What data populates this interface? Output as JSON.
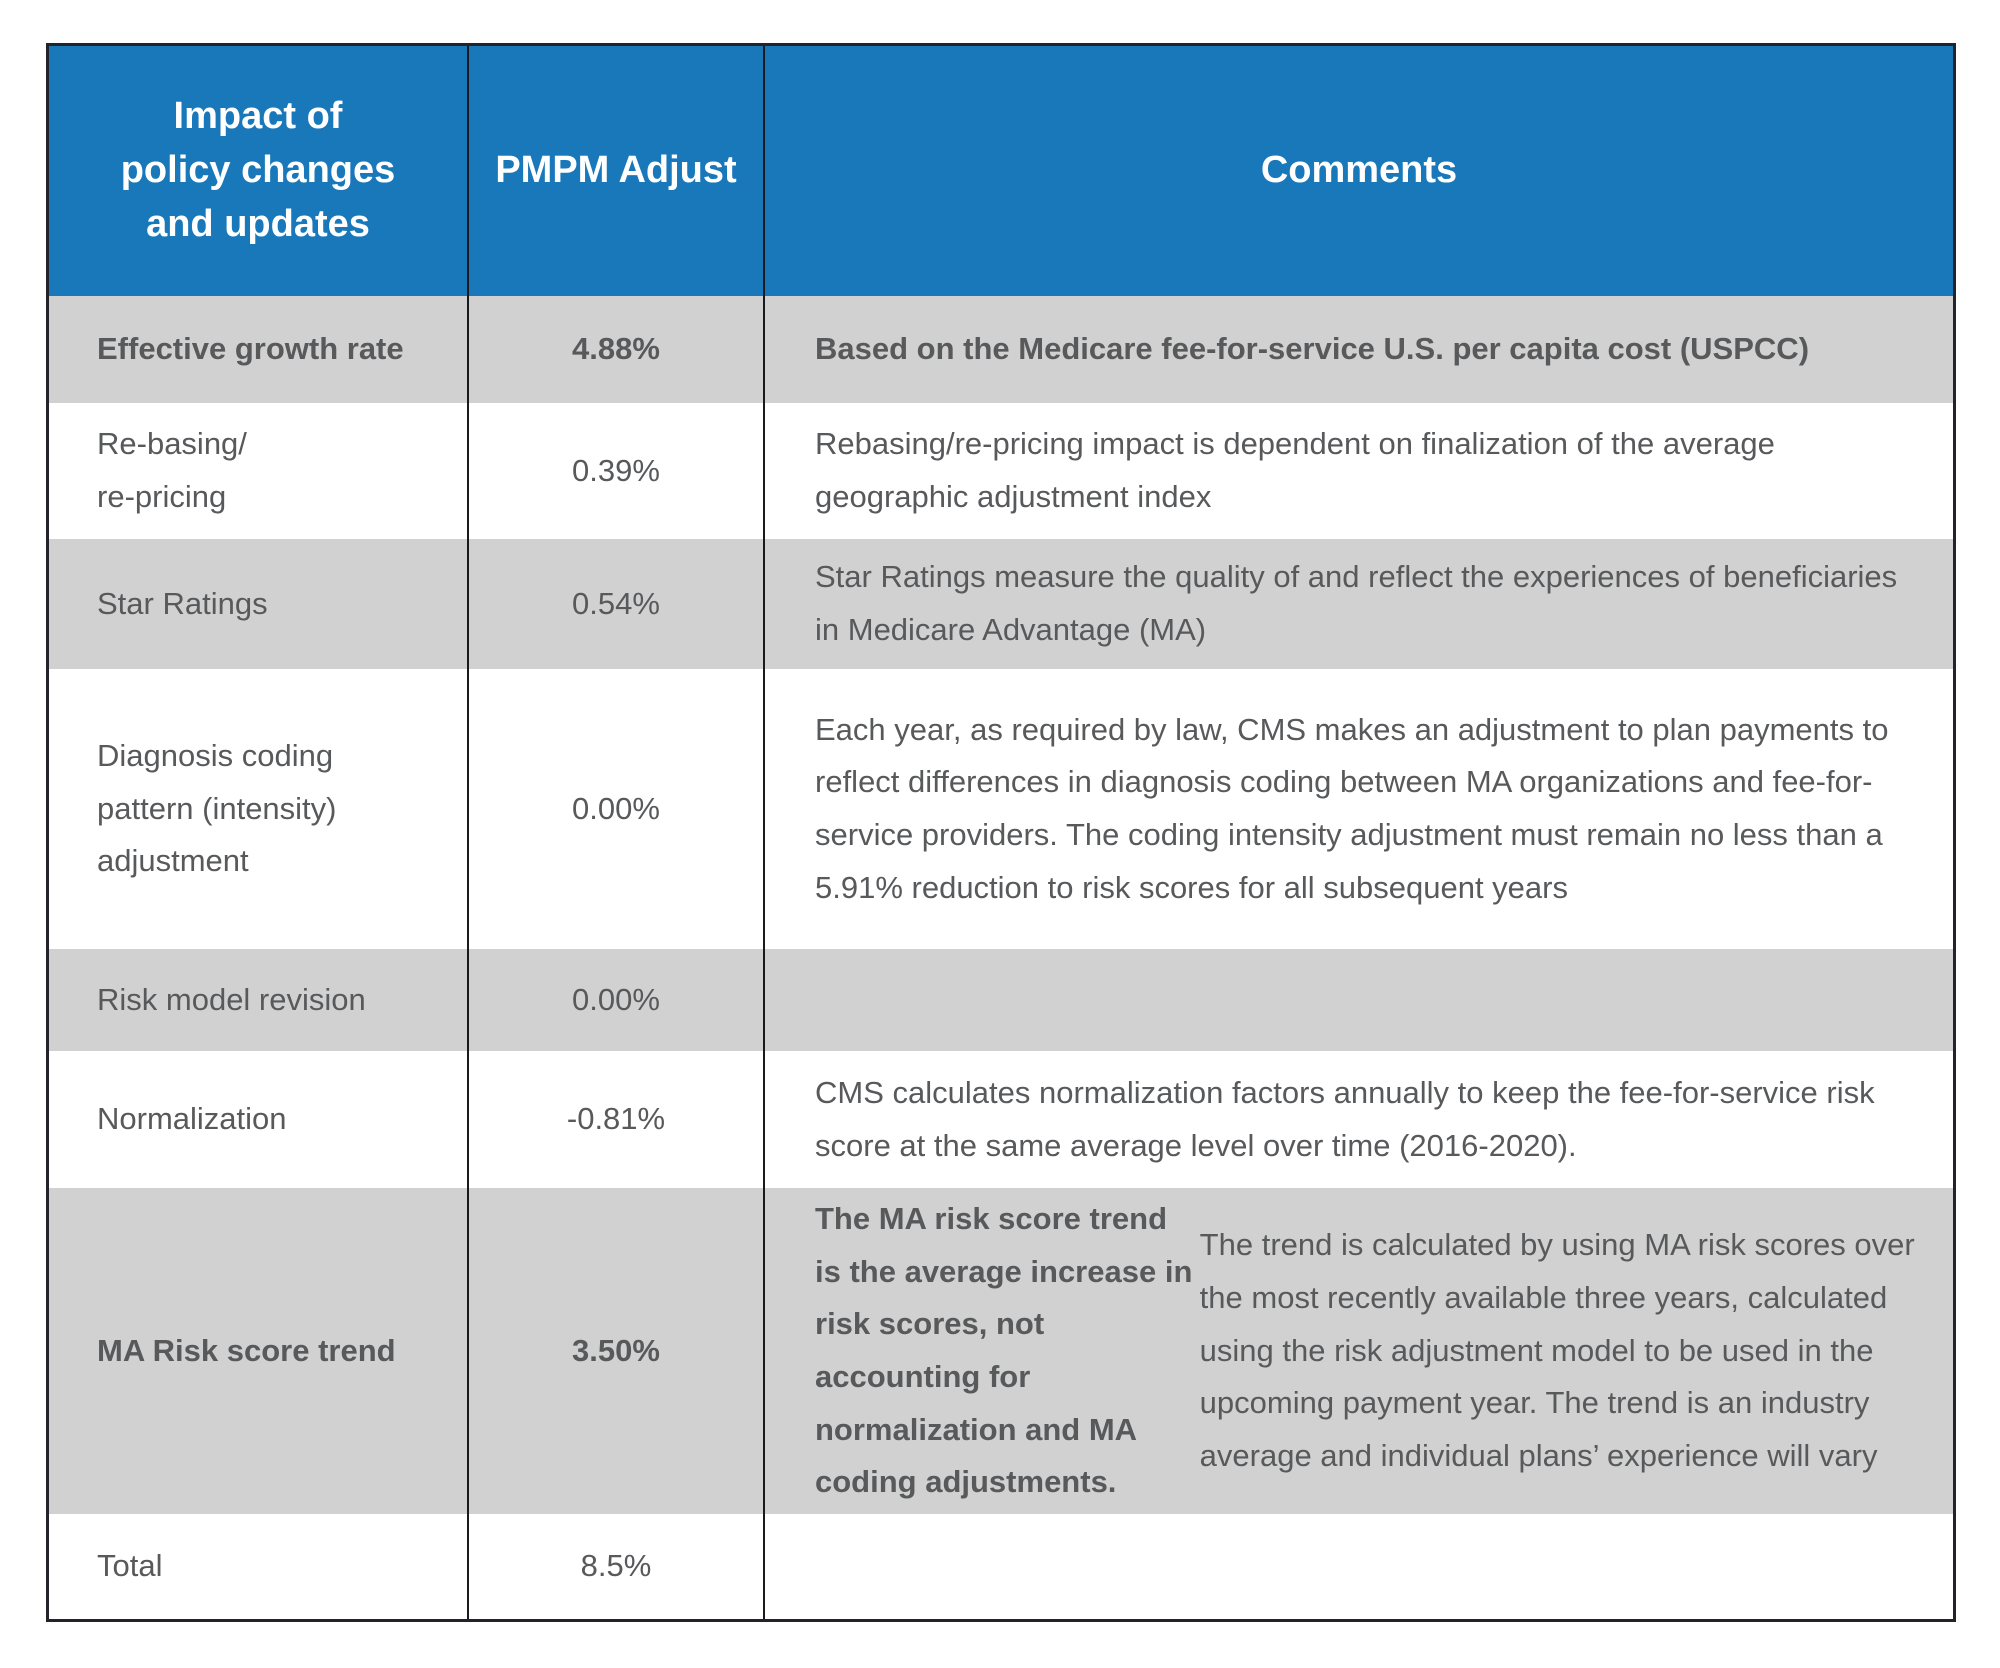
{
  "colors": {
    "header_bg": "#1878ba",
    "shaded_row_bg": "#d1d1d1",
    "body_text": "#58595b",
    "header_text": "#ffffff",
    "table_border": "#23242b"
  },
  "table": {
    "header": {
      "col1": "Impact of\npolicy changes\nand updates",
      "col2": "PMPM Adjust",
      "col3": "Comments"
    },
    "rows": [
      {
        "label": "Effective growth rate",
        "pmpm": "4.88%",
        "comment": "Based on the Medicare fee-for-service U.S. per capita cost (USPCC)"
      },
      {
        "label": "Re-basing/\nre-pricing",
        "pmpm": "0.39%",
        "comment": "Rebasing/re-pricing impact is dependent on finalization of the average geographic adjustment index"
      },
      {
        "label": "Star Ratings",
        "pmpm": "0.54%",
        "comment": "Star Ratings measure the quality of and reflect the experiences of beneficiaries in Medicare Advantage (MA)"
      },
      {
        "label": "Diagnosis coding\npattern (intensity)\nadjustment",
        "pmpm": "0.00%",
        "comment": "Each year, as required by law, CMS makes an adjustment to plan payments to reflect differences in diagnosis coding between MA organizations and fee-for-service providers. The coding intensity adjustment must remain no less than a 5.91% reduction to risk scores for all subsequent years"
      },
      {
        "label": "Risk model revision",
        "pmpm": "0.00%",
        "comment": ""
      },
      {
        "label": "Normalization",
        "pmpm": "-0.81%",
        "comment": "CMS calculates normalization factors annually to keep the fee-for-service risk score at the same average level over time (2016-2020)."
      },
      {
        "label": "MA Risk score trend",
        "pmpm": "3.50%",
        "comment_bold": "The MA risk score trend is the average increase in risk scores, not accounting for normalization and MA coding adjustments.",
        "comment_rest": " The trend is calculated by using MA risk scores over the most recently available three years, calculated using the risk adjustment model to be used in the upcoming payment year. The trend is an industry average and individual plans’ experience will vary"
      },
      {
        "label": "Total",
        "pmpm": "8.5%",
        "comment": ""
      }
    ]
  }
}
